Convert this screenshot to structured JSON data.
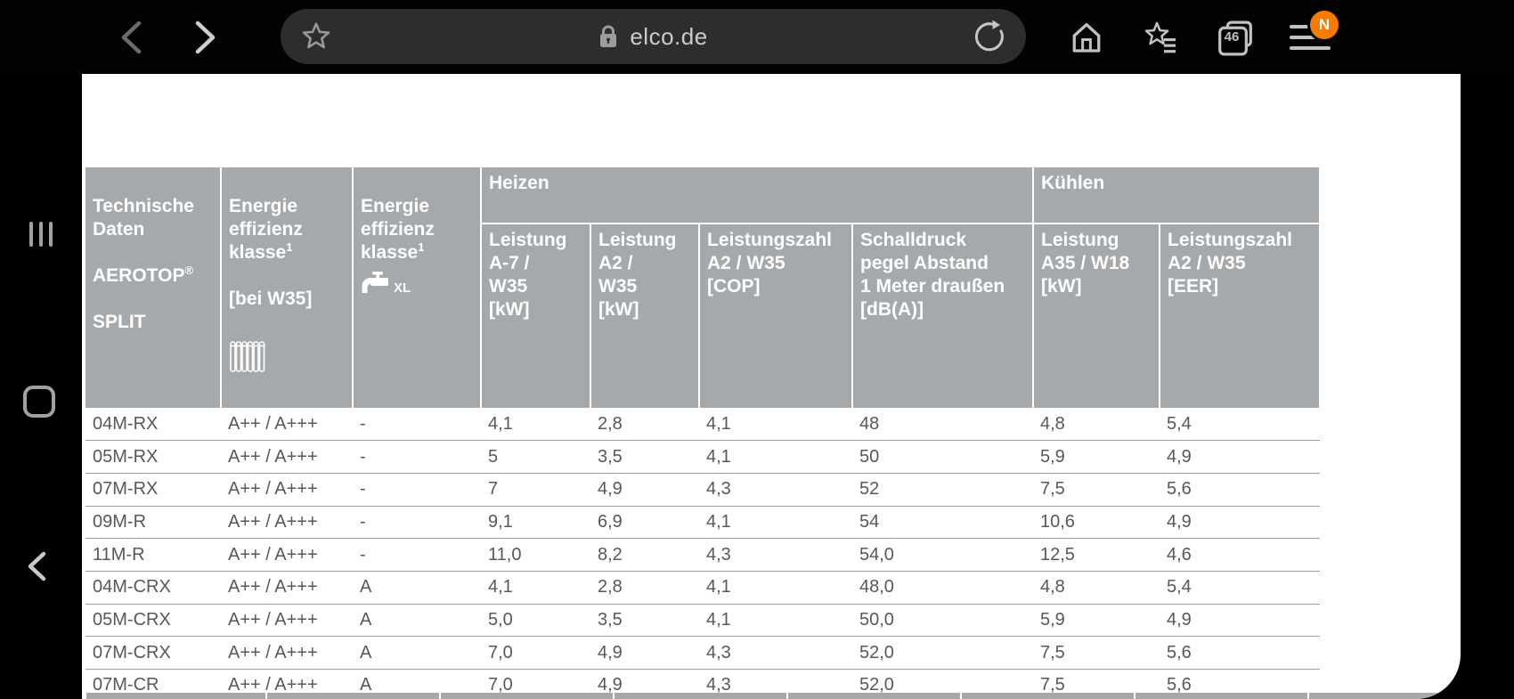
{
  "browser": {
    "url": "elco.de",
    "tab_count": "46",
    "notification_badge": "N"
  },
  "table": {
    "header": {
      "col_product": {
        "top": "Technische\nDaten",
        "brand": "AEROTOP",
        "brand_sup": "®",
        "bottom": "SPLIT"
      },
      "col_eek_heating": {
        "text": "Energie\neffizienz\nklasse",
        "sup": "1",
        "note": "[bei W35]"
      },
      "col_eek_dhw": {
        "text": "Energie\neffizienz\nklasse",
        "sup": "1",
        "tap_size": "XL"
      },
      "group_heating": "Heizen",
      "group_cooling": "Kühlen",
      "sub": [
        "Leistung\nA-7 /\nW35\n[kW]",
        "Leistung\nA2 /\nW35\n[kW]",
        "Leistungszahl\nA2 / W35\n[COP]",
        "Schalldruck\npegel Abstand\n1 Meter draußen\n[dB(A)]",
        "Leistung\nA35 / W18\n[kW]",
        "Leistungszahl\nA2 / W35\n[EER]"
      ]
    },
    "rows": [
      [
        "04M-RX",
        "A++ / A+++",
        "-",
        "4,1",
        "2,8",
        "4,1",
        "48",
        "4,8",
        "5,4"
      ],
      [
        "05M-RX",
        "A++ / A+++",
        "-",
        "5",
        "3,5",
        "4,1",
        "50",
        "5,9",
        "4,9"
      ],
      [
        "07M-RX",
        "A++ / A+++",
        "-",
        "7",
        "4,9",
        "4,3",
        "52",
        "7,5",
        "5,6"
      ],
      [
        "09M-R",
        "A++ / A+++",
        "-",
        "9,1",
        "6,9",
        "4,1",
        "54",
        "10,6",
        "4,9"
      ],
      [
        "11M-R",
        "A++ / A+++",
        "-",
        "11,0",
        "8,2",
        "4,3",
        "54,0",
        "12,5",
        "4,6"
      ],
      [
        "04M-CRX",
        "A++ / A+++",
        "A",
        "4,1",
        "2,8",
        "4,1",
        "48,0",
        "4,8",
        "5,4"
      ],
      [
        "05M-CRX",
        "A++ / A+++",
        "A",
        "5,0",
        "3,5",
        "4,1",
        "50,0",
        "5,9",
        "4,9"
      ],
      [
        "07M-CRX",
        "A++ / A+++",
        "A",
        "7,0",
        "4,9",
        "4,3",
        "52,0",
        "7,5",
        "5,6"
      ],
      [
        "07M-CR",
        "A++ / A+++",
        "A",
        "7,0",
        "4,9",
        "4,3",
        "52,0",
        "7,5",
        "5,6"
      ]
    ]
  },
  "colors": {
    "header_bg": "#a6a9ab",
    "badge_orange": "#f57c00",
    "row_text": "#57585a"
  }
}
